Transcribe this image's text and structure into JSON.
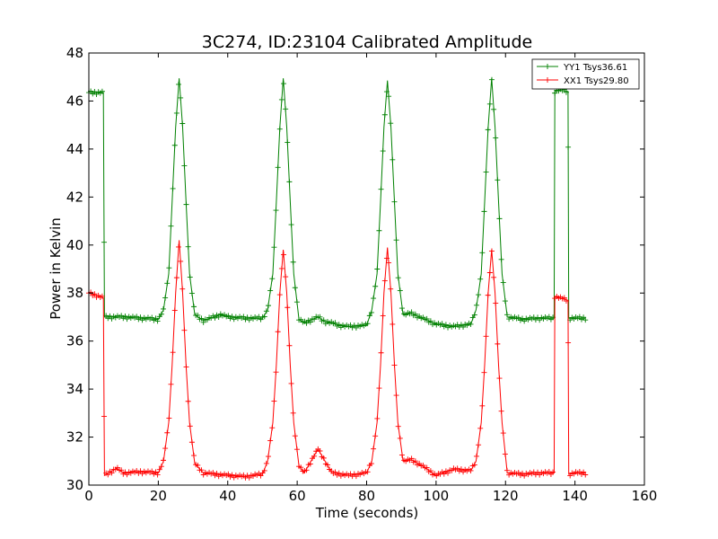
{
  "chart_data": {
    "type": "line",
    "title": "3C274, ID:23104 Calibrated Amplitude",
    "xlabel": "Time (seconds)",
    "ylabel": "Power in Kelvin",
    "xlim": [
      0,
      160
    ],
    "ylim": [
      30,
      48
    ],
    "xticks": [
      "0",
      "20",
      "40",
      "60",
      "80",
      "100",
      "120",
      "140",
      "160"
    ],
    "yticks": [
      "30",
      "32",
      "34",
      "36",
      "38",
      "40",
      "42",
      "44",
      "46",
      "48"
    ],
    "grid": false,
    "legend_position": "top-right",
    "marker": "plus",
    "series": [
      {
        "name": "YY1 Tsys36.61",
        "color": "#008000",
        "x": [
          0,
          4.2,
          4.5,
          10,
          15,
          20,
          21.5,
          23,
          24,
          25,
          26,
          27,
          28,
          29,
          30.5,
          33,
          38,
          40,
          45,
          50,
          51.5,
          53,
          54,
          55,
          56,
          57,
          58,
          59,
          60.5,
          62,
          66,
          68,
          70,
          72,
          75,
          80,
          81.5,
          83,
          84,
          85,
          86,
          87,
          88,
          89,
          90.5,
          93,
          96,
          100,
          105,
          110,
          111.5,
          113,
          114,
          115,
          116,
          117,
          118,
          119,
          120.5,
          125,
          130,
          134,
          134.2,
          135.5,
          138,
          138.2,
          140,
          143
        ],
        "y": [
          46.35,
          46.35,
          37.0,
          37.0,
          36.95,
          36.9,
          37.3,
          38.8,
          41.8,
          44.9,
          46.95,
          44.9,
          41.8,
          38.8,
          37.1,
          36.85,
          37.1,
          37.0,
          36.95,
          36.95,
          37.3,
          38.8,
          41.8,
          44.9,
          46.95,
          44.9,
          41.8,
          38.8,
          36.9,
          36.75,
          37.0,
          36.8,
          36.75,
          36.65,
          36.6,
          36.65,
          37.3,
          38.8,
          41.8,
          44.9,
          46.85,
          44.9,
          41.8,
          38.8,
          37.1,
          37.15,
          36.95,
          36.7,
          36.6,
          36.7,
          37.3,
          38.8,
          41.8,
          44.9,
          46.95,
          44.9,
          41.8,
          38.8,
          37.0,
          36.9,
          36.95,
          36.95,
          46.4,
          46.45,
          46.4,
          36.95,
          36.95,
          36.95
        ]
      },
      {
        "name": "XX1 Tsys29.80",
        "color": "#ff0000",
        "x": [
          0,
          4.2,
          4.5,
          8,
          10,
          15,
          20,
          21.5,
          23,
          24,
          25,
          26,
          27,
          28,
          29,
          30.5,
          33,
          40,
          45,
          50,
          51.5,
          53,
          54,
          55,
          56,
          57,
          58,
          59,
          60.5,
          62,
          64,
          66,
          68,
          70,
          75,
          80,
          81.5,
          83,
          84,
          85,
          86,
          87,
          88,
          89,
          90.5,
          93,
          96,
          100,
          105,
          110,
          111.5,
          113,
          114,
          115,
          116,
          117,
          118,
          119,
          120.5,
          125,
          130,
          134,
          134.2,
          135.5,
          138,
          138.2,
          140,
          143
        ],
        "y": [
          38.0,
          37.8,
          30.4,
          30.7,
          30.5,
          30.55,
          30.5,
          31.0,
          32.6,
          35.0,
          38.0,
          40.2,
          38.0,
          35.0,
          32.6,
          30.9,
          30.5,
          30.4,
          30.35,
          30.45,
          31.0,
          32.6,
          35.0,
          38.0,
          39.8,
          38.0,
          35.0,
          32.6,
          30.8,
          30.5,
          31.0,
          31.5,
          31.0,
          30.5,
          30.4,
          30.5,
          31.0,
          32.6,
          35.0,
          38.0,
          39.9,
          38.0,
          35.0,
          32.6,
          31.0,
          31.05,
          30.8,
          30.4,
          30.65,
          30.6,
          31.0,
          32.6,
          35.0,
          38.0,
          39.8,
          38.0,
          35.0,
          32.6,
          30.5,
          30.45,
          30.5,
          30.5,
          37.85,
          37.8,
          37.7,
          30.45,
          30.5,
          30.5
        ]
      }
    ]
  }
}
